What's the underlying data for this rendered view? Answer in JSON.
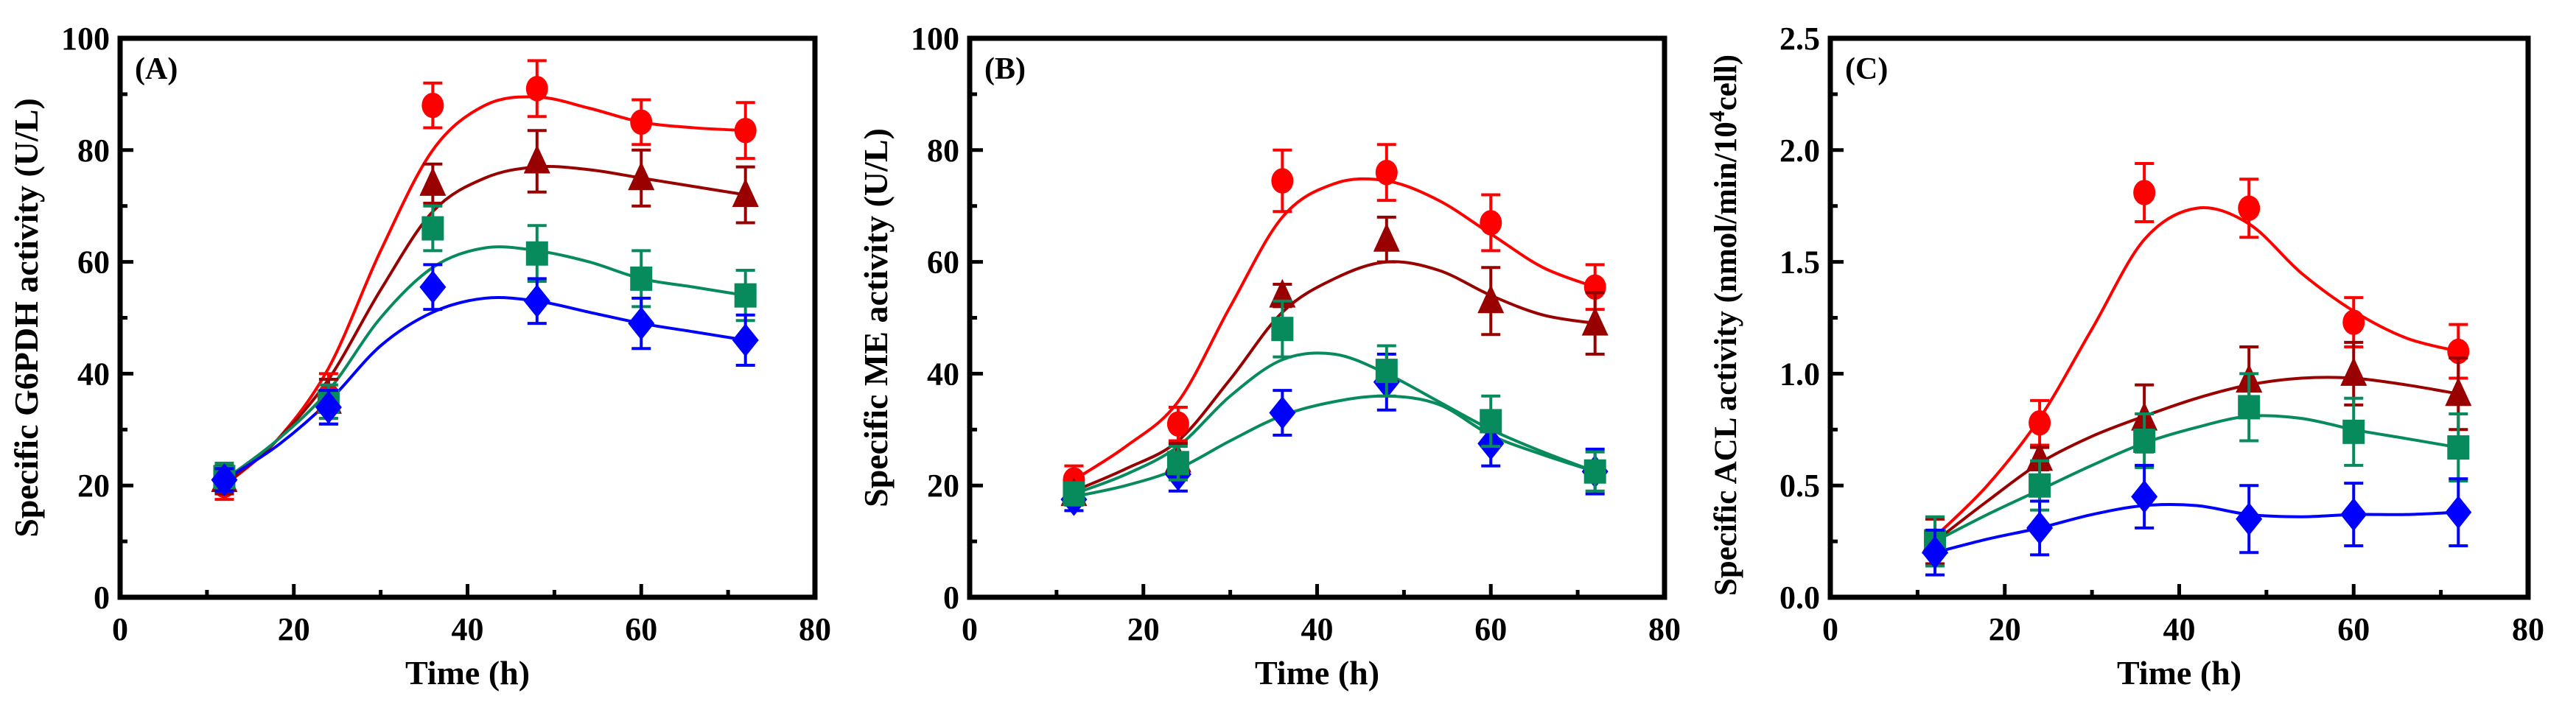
{
  "chart_data": [
    {
      "type": "line",
      "panel_label": "(A)",
      "xlabel": "Time (h)",
      "ylabel": "Specific G6PDH activity (U/L)",
      "xlim": [
        0,
        80
      ],
      "ylim": [
        0,
        100
      ],
      "xticks": [
        0,
        20,
        40,
        60,
        80
      ],
      "yticks": [
        0,
        20,
        40,
        60,
        80,
        100
      ],
      "ytick_labels": [
        "0",
        "20",
        "40",
        "60",
        "80",
        "100"
      ],
      "xminor": 10,
      "yminor": 10,
      "x": [
        12,
        24,
        36,
        48,
        60,
        72
      ],
      "fit_x": [
        12,
        18,
        24,
        30,
        36,
        42,
        48,
        54,
        60,
        66,
        72
      ],
      "series": [
        {
          "marker": "circle",
          "color": "#ff0000",
          "values": [
            20,
            36,
            88,
            91,
            85,
            83.5
          ],
          "errors": [
            2.5,
            4,
            4,
            5,
            4,
            5
          ],
          "fit": [
            20,
            28,
            41,
            62,
            80,
            88,
            89.5,
            87.5,
            85,
            84,
            83.5
          ],
          "fit_color": "#ff0000"
        },
        {
          "marker": "triangle",
          "color": "#990000",
          "values": [
            21,
            35,
            74,
            78,
            75,
            72
          ],
          "errors": [
            2.5,
            4,
            3.5,
            5.5,
            5,
            5
          ],
          "fit": [
            20,
            28,
            39,
            55,
            69,
            75,
            77,
            76.5,
            75,
            73.5,
            72
          ],
          "fit_color": "#990000"
        },
        {
          "marker": "square",
          "color": "#078a5c",
          "values": [
            21.5,
            35,
            66,
            61.5,
            57,
            54
          ],
          "errors": [
            2.5,
            3,
            4,
            5,
            5,
            4.5
          ],
          "fit": [
            21,
            28,
            37,
            50,
            59,
            62.5,
            62,
            60,
            57,
            55.5,
            54
          ],
          "fit_color": "#078a5c"
        },
        {
          "marker": "diamond",
          "color": "#0000ff",
          "values": [
            21,
            34,
            55.5,
            53,
            49,
            46
          ],
          "errors": [
            2,
            3,
            4,
            4,
            4.5,
            4.5
          ],
          "fit": [
            21,
            27,
            35,
            45,
            51,
            53.5,
            53,
            51,
            49,
            47.5,
            46
          ],
          "fit_color": "#0000ff"
        }
      ]
    },
    {
      "type": "line",
      "panel_label": "(B)",
      "xlabel": "Time (h)",
      "ylabel": "Specific ME activity (U/L)",
      "xlim": [
        0,
        80
      ],
      "ylim": [
        0,
        100
      ],
      "xticks": [
        0,
        20,
        40,
        60,
        80
      ],
      "yticks": [
        0,
        20,
        40,
        60,
        80,
        100
      ],
      "ytick_labels": [
        "0",
        "20",
        "40",
        "60",
        "80",
        "100"
      ],
      "xminor": 10,
      "yminor": 10,
      "x": [
        12,
        24,
        36,
        48,
        60,
        72
      ],
      "fit_x": [
        12,
        18,
        24,
        30,
        36,
        42,
        48,
        54,
        60,
        66,
        72
      ],
      "series": [
        {
          "marker": "circle",
          "color": "#ff0000",
          "values": [
            21,
            31,
            74.5,
            76,
            67,
            55.5
          ],
          "errors": [
            2.5,
            3,
            5.5,
            5,
            5,
            4
          ],
          "fit": [
            21,
            27,
            35,
            52,
            68,
            74,
            74.5,
            71,
            65,
            59,
            55.5
          ],
          "fit_color": "#ff0000"
        },
        {
          "marker": "triangle",
          "color": "#990000",
          "values": [
            18.5,
            24.5,
            54,
            64,
            53,
            49
          ],
          "errors": [
            2,
            3,
            2,
            4,
            6,
            5.5
          ],
          "fit": [
            19,
            23,
            28,
            39,
            51,
            57,
            60,
            58.5,
            54,
            50.5,
            49
          ],
          "fit_color": "#990000"
        },
        {
          "marker": "diamond",
          "color": "#0000ff",
          "values": [
            17.5,
            22,
            33,
            38.5,
            27.5,
            22.5
          ],
          "errors": [
            2,
            3,
            4,
            5,
            4,
            4
          ],
          "fit": [
            18,
            20,
            23,
            28,
            32.5,
            35,
            36,
            34.5,
            29,
            25.5,
            22.5
          ],
          "fit_color": "#078a5c"
        },
        {
          "marker": "square",
          "color": "#078a5c",
          "values": [
            18.5,
            24,
            48,
            40.5,
            31.5,
            22.5
          ],
          "errors": [
            2,
            3,
            5,
            4.5,
            4.5,
            3.5
          ],
          "fit": [
            18.5,
            22,
            27,
            36,
            42.5,
            43.5,
            40,
            35,
            30,
            26,
            22.5
          ],
          "fit_color": "#078a5c"
        }
      ]
    },
    {
      "type": "line",
      "panel_label": "(C)",
      "xlabel": "Time (h)",
      "ylabel": "Specific ACL activity (nmol/min/10",
      "ylabel_sup": "4",
      "ylabel_end": "cell)",
      "xlim": [
        0,
        80
      ],
      "ylim": [
        0,
        2.5
      ],
      "xticks": [
        0,
        20,
        40,
        60,
        80
      ],
      "yticks": [
        0,
        0.5,
        1.0,
        1.5,
        2.0,
        2.5
      ],
      "ytick_labels": [
        "0.0",
        "0.5",
        "1.0",
        "1.5",
        "2.0",
        "2.5"
      ],
      "xminor": 10,
      "yminor": 0.25,
      "x": [
        12,
        24,
        36,
        48,
        60,
        72
      ],
      "fit_x": [
        12,
        18,
        24,
        30,
        36,
        42,
        48,
        54,
        60,
        66,
        72
      ],
      "series": [
        {
          "marker": "circle",
          "color": "#ff0000",
          "values": [
            0.25,
            0.78,
            1.81,
            1.74,
            1.23,
            1.1
          ],
          "errors": [
            0.1,
            0.1,
            0.13,
            0.13,
            0.11,
            0.12
          ],
          "fit": [
            0.27,
            0.5,
            0.8,
            1.2,
            1.6,
            1.74,
            1.67,
            1.45,
            1.28,
            1.16,
            1.1
          ],
          "fit_color": "#ff0000"
        },
        {
          "marker": "triangle",
          "color": "#990000",
          "values": [
            0.25,
            0.62,
            0.8,
            0.97,
            1.0,
            0.91
          ],
          "errors": [
            0.1,
            0.05,
            0.15,
            0.15,
            0.14,
            0.16
          ],
          "fit": [
            0.25,
            0.43,
            0.6,
            0.72,
            0.81,
            0.89,
            0.95,
            0.98,
            0.98,
            0.95,
            0.91
          ],
          "fit_color": "#990000"
        },
        {
          "marker": "square",
          "color": "#078a5c",
          "values": [
            0.25,
            0.5,
            0.7,
            0.85,
            0.74,
            0.67
          ],
          "errors": [
            0.11,
            0.11,
            0.12,
            0.15,
            0.15,
            0.15
          ],
          "fit": [
            0.25,
            0.37,
            0.48,
            0.59,
            0.69,
            0.76,
            0.81,
            0.8,
            0.75,
            0.71,
            0.67
          ],
          "fit_color": "#078a5c"
        },
        {
          "marker": "diamond",
          "color": "#0000ff",
          "values": [
            0.2,
            0.31,
            0.45,
            0.35,
            0.37,
            0.38
          ],
          "errors": [
            0.1,
            0.12,
            0.14,
            0.15,
            0.14,
            0.15
          ],
          "fit": [
            0.2,
            0.26,
            0.31,
            0.37,
            0.41,
            0.41,
            0.37,
            0.36,
            0.37,
            0.37,
            0.38
          ],
          "fit_color": "#0000ff"
        }
      ]
    }
  ]
}
